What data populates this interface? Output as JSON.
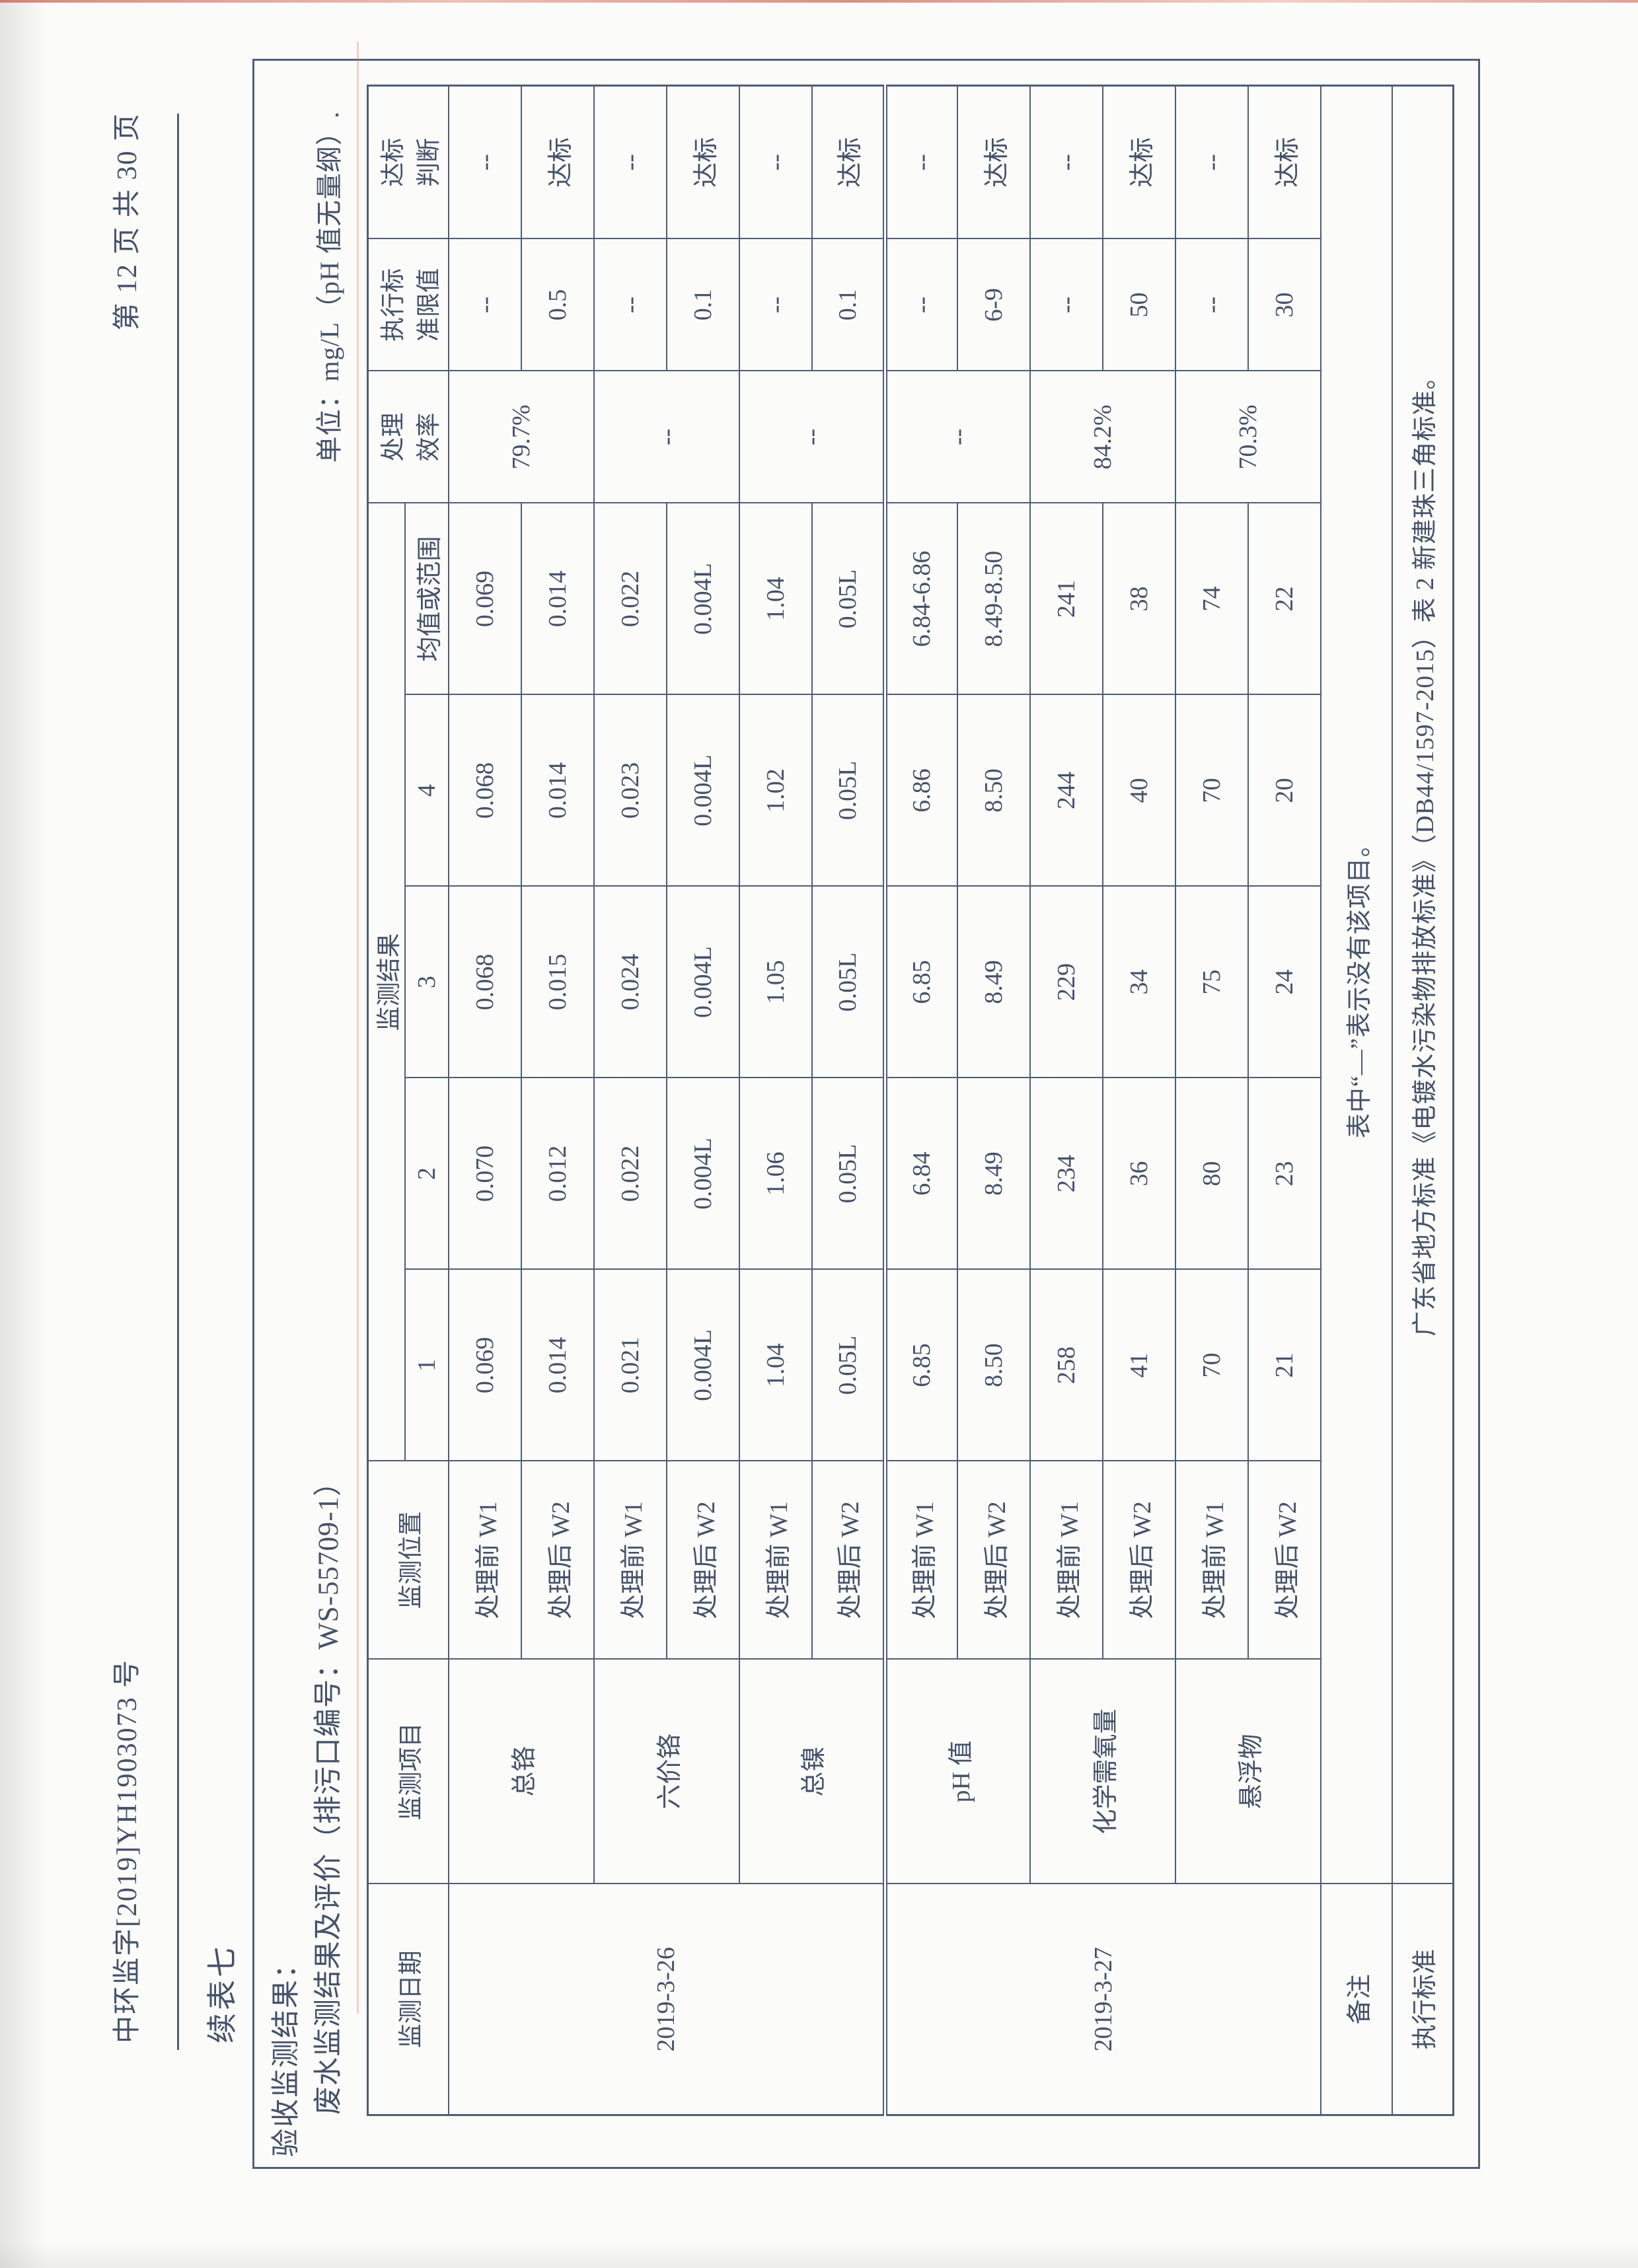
{
  "header": {
    "doc_number": "中环监字[2019]YH1903073 号",
    "page_indicator": "第 12 页 共 30 页"
  },
  "titles": {
    "continuation": "续表七",
    "section": "验收监测结果：",
    "table_title": "废水监测结果及评价（排污口编号：WS-55709-1）",
    "unit_note": "单位：mg/L（pH 值无量纲）."
  },
  "table": {
    "header_row_1": [
      {
        "label": "监测日期",
        "rowspan": 2
      },
      {
        "label": "监测项目",
        "rowspan": 2
      },
      {
        "label": "监测位置",
        "rowspan": 2
      },
      {
        "label": "监测结果",
        "colspan": 5
      },
      {
        "label": "处理\n效率",
        "rowspan": 2
      },
      {
        "label": "执行标\n准限值",
        "rowspan": 2
      },
      {
        "label": "达标\n判断",
        "rowspan": 2
      }
    ],
    "header_row_2": [
      "1",
      "2",
      "3",
      "4",
      "均值或范围"
    ],
    "rows": [
      [
        {
          "t": "2019-3-26",
          "rowspan": 6
        },
        {
          "t": "总铬",
          "rowspan": 2
        },
        {
          "t": "处理前 W1"
        },
        {
          "t": "0.069"
        },
        {
          "t": "0.070"
        },
        {
          "t": "0.068"
        },
        {
          "t": "0.068"
        },
        {
          "t": "0.069"
        },
        {
          "t": "79.7%",
          "rowspan": 2
        },
        {
          "t": "--"
        },
        {
          "t": "--"
        }
      ],
      [
        {
          "t": "处理后 W2"
        },
        {
          "t": "0.014"
        },
        {
          "t": "0.012"
        },
        {
          "t": "0.015"
        },
        {
          "t": "0.014"
        },
        {
          "t": "0.014"
        },
        {
          "t": "0.5"
        },
        {
          "t": "达标"
        }
      ],
      [
        {
          "t": "六价铬",
          "rowspan": 2
        },
        {
          "t": "处理前 W1"
        },
        {
          "t": "0.021"
        },
        {
          "t": "0.022"
        },
        {
          "t": "0.024"
        },
        {
          "t": "0.023"
        },
        {
          "t": "0.022"
        },
        {
          "t": "--",
          "rowspan": 2
        },
        {
          "t": "--"
        },
        {
          "t": "--"
        }
      ],
      [
        {
          "t": "处理后 W2"
        },
        {
          "t": "0.004L"
        },
        {
          "t": "0.004L"
        },
        {
          "t": "0.004L"
        },
        {
          "t": "0.004L"
        },
        {
          "t": "0.004L"
        },
        {
          "t": "0.1"
        },
        {
          "t": "达标"
        }
      ],
      [
        {
          "t": "总镍",
          "rowspan": 2
        },
        {
          "t": "处理前 W1"
        },
        {
          "t": "1.04"
        },
        {
          "t": "1.06"
        },
        {
          "t": "1.05"
        },
        {
          "t": "1.02"
        },
        {
          "t": "1.04"
        },
        {
          "t": "--",
          "rowspan": 2
        },
        {
          "t": "--"
        },
        {
          "t": "--"
        }
      ],
      [
        {
          "t": "处理后 W2"
        },
        {
          "t": "0.05L"
        },
        {
          "t": "0.05L"
        },
        {
          "t": "0.05L"
        },
        {
          "t": "0.05L"
        },
        {
          "t": "0.05L"
        },
        {
          "t": "0.1"
        },
        {
          "t": "达标"
        }
      ],
      [
        {
          "t": "2019-3-27",
          "rowspan": 6
        },
        {
          "t": "pH 值",
          "rowspan": 2
        },
        {
          "t": "处理前 W1"
        },
        {
          "t": "6.85"
        },
        {
          "t": "6.84"
        },
        {
          "t": "6.85"
        },
        {
          "t": "6.86"
        },
        {
          "t": "6.84-6.86"
        },
        {
          "t": "--",
          "rowspan": 2
        },
        {
          "t": "--"
        },
        {
          "t": "--"
        }
      ],
      [
        {
          "t": "处理后 W2"
        },
        {
          "t": "8.50"
        },
        {
          "t": "8.49"
        },
        {
          "t": "8.49"
        },
        {
          "t": "8.50"
        },
        {
          "t": "8.49-8.50"
        },
        {
          "t": "6-9"
        },
        {
          "t": "达标"
        }
      ],
      [
        {
          "t": "化学需氧量",
          "rowspan": 2
        },
        {
          "t": "处理前 W1"
        },
        {
          "t": "258"
        },
        {
          "t": "234"
        },
        {
          "t": "229"
        },
        {
          "t": "244"
        },
        {
          "t": "241"
        },
        {
          "t": "84.2%",
          "rowspan": 2
        },
        {
          "t": "--"
        },
        {
          "t": "--"
        }
      ],
      [
        {
          "t": "处理后 W2"
        },
        {
          "t": "41"
        },
        {
          "t": "36"
        },
        {
          "t": "34"
        },
        {
          "t": "40"
        },
        {
          "t": "38"
        },
        {
          "t": "50"
        },
        {
          "t": "达标"
        }
      ],
      [
        {
          "t": "悬浮物",
          "rowspan": 2
        },
        {
          "t": "处理前 W1"
        },
        {
          "t": "70"
        },
        {
          "t": "80"
        },
        {
          "t": "75"
        },
        {
          "t": "70"
        },
        {
          "t": "74"
        },
        {
          "t": "70.3%",
          "rowspan": 2
        },
        {
          "t": "--"
        },
        {
          "t": "--"
        }
      ],
      [
        {
          "t": "处理后 W2"
        },
        {
          "t": "21"
        },
        {
          "t": "23"
        },
        {
          "t": "24"
        },
        {
          "t": "20"
        },
        {
          "t": "22"
        },
        {
          "t": "30"
        },
        {
          "t": "达标"
        }
      ]
    ],
    "remark": {
      "label": "备注",
      "text": "表中“—”表示没有该项目。"
    },
    "standard": {
      "label": "执行标准",
      "text": "广东省地方标准《电镀水污染物排放标准》（DB44/1597-2015）表 2 新建珠三角标准。"
    }
  },
  "colors": {
    "ink": "#44526a",
    "grid_line": "#4e5d75",
    "paper": "#fbfbf9",
    "scan_artifact_red": "#c24532"
  }
}
